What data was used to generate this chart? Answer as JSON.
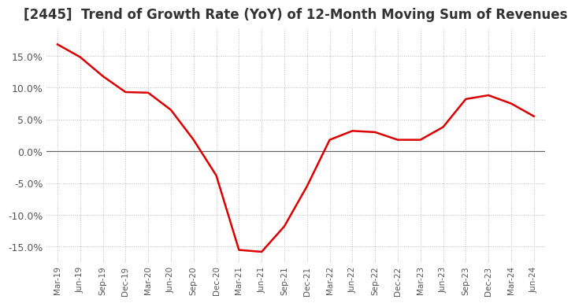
{
  "title": "[2445]  Trend of Growth Rate (YoY) of 12-Month Moving Sum of Revenues",
  "title_fontsize": 12,
  "line_color": "#dd0000",
  "ylim": [
    -0.175,
    0.195
  ],
  "yticks": [
    -0.15,
    -0.1,
    -0.05,
    0.0,
    0.05,
    0.1,
    0.15
  ],
  "yticklabels": [
    "-15.0%",
    "-10.0%",
    "-5.0%",
    "0.0%",
    "5.0%",
    "10.0%",
    "15.0%"
  ],
  "background_color": "#ffffff",
  "grid_color": "#bbbbbb",
  "dates": [
    "Mar-19",
    "Jun-19",
    "Sep-19",
    "Dec-19",
    "Mar-20",
    "Jun-20",
    "Sep-20",
    "Dec-20",
    "Mar-21",
    "Jun-21",
    "Sep-21",
    "Dec-21",
    "Mar-22",
    "Jun-22",
    "Sep-22",
    "Dec-22",
    "Mar-23",
    "Jun-23",
    "Sep-23",
    "Dec-23",
    "Mar-24",
    "Jun-24"
  ],
  "values": [
    0.168,
    0.148,
    0.118,
    0.093,
    0.092,
    0.065,
    0.018,
    -0.038,
    -0.155,
    -0.158,
    -0.118,
    -0.055,
    0.018,
    0.032,
    0.03,
    0.018,
    0.018,
    0.038,
    0.082,
    0.088,
    0.075,
    0.055
  ]
}
